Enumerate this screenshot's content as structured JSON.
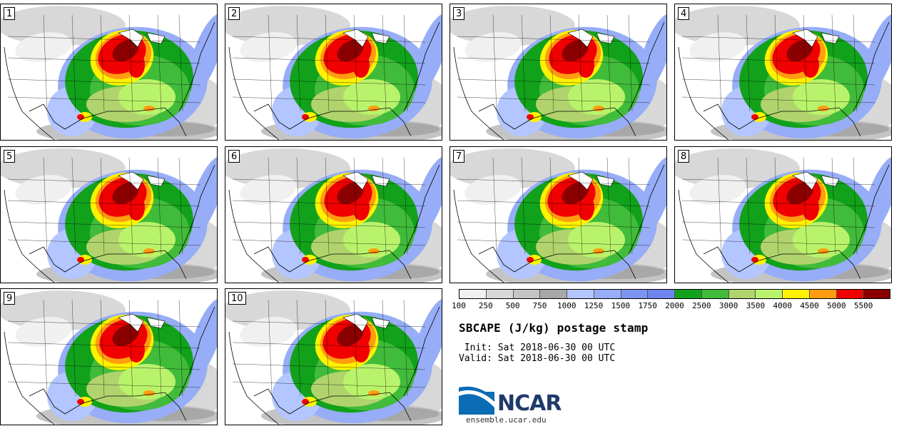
{
  "panels": [
    {
      "label": "1"
    },
    {
      "label": "2"
    },
    {
      "label": "3"
    },
    {
      "label": "4"
    },
    {
      "label": "5"
    },
    {
      "label": "6"
    },
    {
      "label": "7"
    },
    {
      "label": "8"
    },
    {
      "label": "9"
    },
    {
      "label": "10"
    }
  ],
  "legend": {
    "colors": [
      "#f0f0f0",
      "#d8d8d8",
      "#c4c4c4",
      "#a8a8a8",
      "#b3c6ff",
      "#97adf7",
      "#7d95f0",
      "#6e84ee",
      "#12a11b",
      "#41bb3a",
      "#b1d36d",
      "#b9f36b",
      "#fff200",
      "#ff9d10",
      "#f00000",
      "#8a0000"
    ],
    "ticks": [
      "100",
      "250",
      "500",
      "750",
      "1000",
      "1250",
      "1500",
      "1750",
      "2000",
      "2500",
      "3000",
      "3500",
      "4000",
      "4500",
      "5000",
      "5500"
    ]
  },
  "title": "SBCAPE (J/kg) postage stamp",
  "init_line": " Init: Sat 2018-06-30 00 UTC",
  "valid_line": "Valid: Sat 2018-06-30 00 UTC",
  "logo": {
    "name": "NCAR",
    "url": "ensemble.ucar.edu"
  }
}
